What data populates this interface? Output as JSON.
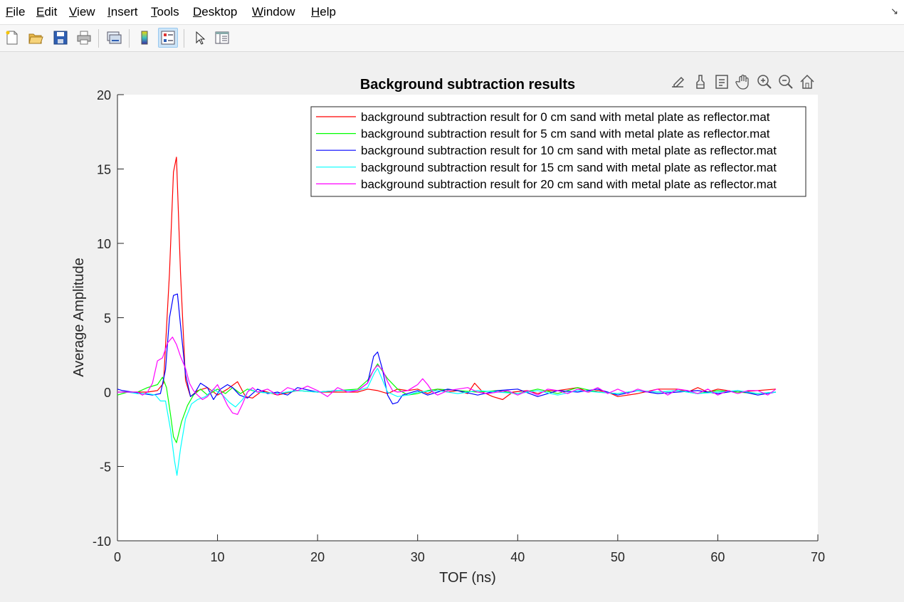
{
  "menu": {
    "file": {
      "first": "F",
      "rest": "ile"
    },
    "edit": {
      "first": "E",
      "rest": "dit"
    },
    "view": {
      "first": "V",
      "rest": "iew"
    },
    "insert": {
      "first": "I",
      "rest": "nsert"
    },
    "tools": {
      "first": "T",
      "rest": "ools"
    },
    "desktop": {
      "first": "D",
      "rest": "esktop"
    },
    "window": {
      "first": "W",
      "rest": "indow"
    },
    "help": {
      "first": "H",
      "rest": "elp"
    }
  },
  "toolbar": {
    "icons": [
      "new-file-icon",
      "open-folder-icon",
      "save-icon",
      "print-icon",
      "link-plot-icon",
      "colorbar-icon",
      "legend-icon",
      "pointer-icon",
      "property-inspector-icon"
    ]
  },
  "axes_toolbar": {
    "icons": [
      "brush-export-icon",
      "data-brush-icon",
      "data-tips-icon",
      "pan-hand-icon",
      "zoom-in-icon",
      "zoom-out-icon",
      "home-icon"
    ]
  },
  "colors": {
    "red": "#ff0000",
    "green": "#00ff00",
    "blue": "#0000ff",
    "cyan": "#00ffff",
    "magenta": "#ff00ff"
  },
  "chart_data": {
    "type": "line",
    "title": "Background subtraction results",
    "xlabel": "TOF (ns)",
    "ylabel": "Average Amplitude",
    "xlim": [
      0,
      70
    ],
    "ylim": [
      -10,
      20
    ],
    "xticks": [
      "0",
      "10",
      "20",
      "30",
      "40",
      "50",
      "60",
      "70"
    ],
    "yticks": [
      "20",
      "15",
      "10",
      "5",
      "0",
      "-5",
      "-10"
    ],
    "grid": false,
    "legend_position": "top-right",
    "series": [
      {
        "name": "background subtraction result for 0 cm sand with metal plate as reflector.mat",
        "color": "#ff0000",
        "x": [
          0,
          1,
          2,
          3,
          4,
          4.6,
          5.2,
          5.6,
          5.9,
          6.3,
          6.8,
          7.3,
          8,
          9,
          10,
          11,
          12,
          12.8,
          13.5,
          14.5,
          16,
          18,
          20,
          22,
          24,
          25,
          26,
          27,
          28,
          29,
          30,
          31,
          32,
          33,
          34,
          35,
          35.7,
          36.5,
          37.5,
          38.5,
          39.5,
          41,
          42,
          43,
          44,
          45,
          46,
          47,
          48,
          49,
          50,
          52,
          54,
          56,
          57,
          58,
          59,
          60,
          62,
          64,
          65.8
        ],
        "y": [
          0,
          0,
          0,
          0,
          0.1,
          0.6,
          8,
          14.8,
          15.8,
          8,
          0.8,
          -0.3,
          0.1,
          0.3,
          -0.2,
          0.2,
          0.7,
          -0.3,
          -0.4,
          0.1,
          -0.2,
          0.1,
          0,
          0,
          0,
          0.2,
          0.1,
          -0.1,
          0.2,
          0.1,
          0.2,
          -0.1,
          0.2,
          0,
          0.1,
          -0.1,
          0.6,
          0,
          -0.3,
          -0.5,
          0,
          0.1,
          -0.1,
          0.1,
          0.1,
          0.2,
          0.3,
          0,
          0.1,
          0,
          -0.3,
          -0.1,
          0.2,
          0.2,
          0,
          0.3,
          0,
          0.2,
          0,
          0.1,
          0.2
        ]
      },
      {
        "name": "background subtraction result for 5 cm sand with metal plate as reflector.mat",
        "color": "#00ff00",
        "x": [
          0,
          1,
          2,
          3,
          4,
          4.5,
          4.9,
          5.3,
          5.6,
          5.9,
          6.4,
          7,
          7.6,
          8.3,
          9,
          10,
          10.8,
          11.5,
          12.3,
          13,
          14,
          16,
          18,
          20,
          22,
          24,
          25,
          26,
          27,
          28,
          29,
          30,
          31,
          32,
          34,
          36,
          38,
          40,
          42,
          44,
          46,
          48,
          50,
          52,
          54,
          56,
          58,
          60,
          62,
          64,
          65.8
        ],
        "y": [
          -0.2,
          0,
          0,
          0.3,
          0.5,
          1,
          0.3,
          -1.5,
          -3,
          -3.4,
          -2,
          -0.9,
          -0.2,
          0.2,
          -0.2,
          0.2,
          -0.1,
          0.3,
          -0.1,
          0.2,
          0,
          -0.1,
          0.1,
          0,
          0.1,
          0.2,
          0.8,
          1.9,
          0.9,
          0.2,
          -0.2,
          -0.1,
          0.1,
          0.2,
          0.1,
          0,
          0.1,
          -0.1,
          0.2,
          -0.1,
          0.3,
          0,
          -0.1,
          0.1,
          0,
          0.1,
          -0.1,
          0.1,
          0,
          -0.1,
          0
        ]
      },
      {
        "name": "background subtraction result for 10 cm sand with metal plate as reflector.mat",
        "color": "#0000ff",
        "x": [
          0,
          0.5,
          1.5,
          2.5,
          3.5,
          4.3,
          4.8,
          5.2,
          5.6,
          6,
          6.3,
          6.8,
          7.3,
          7.7,
          8.3,
          9,
          9.6,
          10.3,
          11,
          11.5,
          12.2,
          13,
          14,
          15,
          16,
          17,
          18,
          20,
          22,
          24,
          25,
          25.6,
          26,
          26.5,
          27,
          27.5,
          28,
          28.5,
          29,
          30,
          31,
          32,
          33,
          34,
          36,
          38,
          40,
          42,
          44,
          46,
          48,
          50,
          52,
          54,
          56,
          58,
          60,
          62,
          64,
          65.8
        ],
        "y": [
          0.2,
          0.1,
          0,
          -0.1,
          -0.2,
          -0.1,
          1.5,
          5,
          6.5,
          6.6,
          4.5,
          1.2,
          -0.3,
          -0.1,
          0.6,
          0.3,
          -0.5,
          0.2,
          0.5,
          0.3,
          -0.2,
          -0.4,
          0.2,
          -0.1,
          0,
          -0.2,
          0.3,
          0,
          0.1,
          0.1,
          0.6,
          2.4,
          2.7,
          1.5,
          -0.2,
          -0.8,
          -0.7,
          -0.2,
          -0.1,
          0.1,
          -0.2,
          0,
          0.2,
          0.1,
          -0.2,
          0.1,
          0.2,
          -0.3,
          0.1,
          0,
          0.2,
          -0.2,
          0.1,
          -0.1,
          0,
          0.1,
          -0.1,
          0.1,
          -0.2,
          0
        ]
      },
      {
        "name": "background subtraction result for 15 cm sand with metal plate as reflector.mat",
        "color": "#00ffff",
        "x": [
          0,
          1,
          2,
          3,
          3.8,
          4.3,
          4.8,
          5.3,
          5.7,
          5.95,
          6.3,
          6.8,
          7.4,
          8,
          8.8,
          9.6,
          10.5,
          11.2,
          11.8,
          12.5,
          13.2,
          14,
          16,
          18,
          20,
          22,
          24,
          25,
          25.7,
          26,
          26.5,
          27,
          28,
          29,
          30,
          32,
          34,
          36,
          38,
          40,
          42,
          44,
          46,
          48,
          50,
          52,
          54,
          56,
          58,
          60,
          62,
          64,
          65.8
        ],
        "y": [
          0,
          0,
          -0.1,
          -0.1,
          -0.2,
          -0.6,
          -0.6,
          -2.5,
          -4.6,
          -5.6,
          -3.8,
          -1.8,
          -0.8,
          -0.5,
          -0.3,
          0.2,
          -0.2,
          -0.7,
          -1,
          -0.5,
          0.2,
          0,
          -0.1,
          0.1,
          0,
          0.1,
          0.1,
          0.3,
          1.3,
          1.6,
          0.8,
          0,
          -0.3,
          -0.2,
          0,
          0.1,
          -0.1,
          0.1,
          0,
          -0.1,
          0.1,
          -0.2,
          0.1,
          0,
          -0.1,
          0.1,
          0,
          0.1,
          -0.1,
          0,
          0.1,
          -0.1,
          0
        ]
      },
      {
        "name": "background subtraction result for 20 cm sand with metal plate as reflector.mat",
        "color": "#ff00ff",
        "x": [
          0,
          1,
          2,
          2.5,
          3,
          3.5,
          4,
          4.5,
          5,
          5.5,
          5.9,
          6.3,
          6.8,
          7.2,
          7.6,
          8,
          8.5,
          9,
          9.5,
          10,
          10.5,
          11,
          11.5,
          12,
          12.5,
          13,
          13.5,
          14,
          15,
          16,
          17,
          18,
          19,
          20,
          21,
          22,
          23,
          24,
          25,
          25.6,
          26,
          26.5,
          27,
          27.5,
          28,
          29,
          29.5,
          30,
          30.5,
          31,
          31.5,
          32,
          33,
          34,
          35,
          36,
          37,
          38,
          39,
          40,
          41,
          42,
          43,
          44,
          45,
          46,
          47,
          48,
          49,
          50,
          51,
          52,
          53,
          54,
          55,
          56,
          57,
          58,
          59,
          60,
          61,
          62,
          63,
          64,
          65,
          65.8
        ],
        "y": [
          0,
          0,
          0,
          -0.2,
          0,
          0.6,
          2.1,
          2.3,
          3.3,
          3.7,
          3.2,
          2.4,
          1.6,
          0.6,
          0.1,
          -0.2,
          -0.5,
          -0.3,
          0.1,
          0.5,
          -0.2,
          -0.9,
          -1.4,
          -1.5,
          -0.8,
          0,
          0.3,
          0,
          0.2,
          -0.2,
          0.3,
          0.1,
          0.4,
          0.1,
          -0.3,
          0.3,
          0,
          0.1,
          0.6,
          1.5,
          1.8,
          1.5,
          0.7,
          0.1,
          0,
          0.1,
          0.3,
          0.5,
          0.9,
          0.5,
          0,
          -0.2,
          0.1,
          0.2,
          0.3,
          0,
          -0.1,
          0,
          0.1,
          -0.2,
          0.1,
          -0.2,
          0.2,
          0.1,
          -0.1,
          0.2,
          0,
          0.3,
          -0.1,
          0.2,
          -0.1,
          0.2,
          0,
          0.2,
          -0.2,
          0.2,
          0.1,
          -0.1,
          0.2,
          -0.2,
          0.1,
          -0.1,
          0.1,
          0.1,
          -0.2,
          0.2
        ]
      }
    ]
  }
}
